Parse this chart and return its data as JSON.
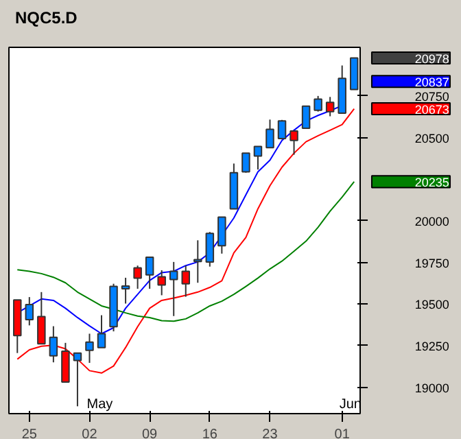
{
  "chart_data": {
    "type": "candlestick",
    "title": "NQC5.D",
    "categories": [
      null,
      "25",
      null,
      null,
      null,
      null,
      "02",
      null,
      null,
      null,
      null,
      "09",
      null,
      null,
      null,
      null,
      "16",
      null,
      null,
      null,
      null,
      "23",
      null,
      null,
      null,
      null,
      null,
      "01",
      null
    ],
    "ohlc": [
      [
        19525,
        19525,
        19206,
        19311
      ],
      [
        19406,
        19542,
        19372,
        19497
      ],
      [
        19425,
        19572,
        19261,
        19261
      ],
      [
        19189,
        19367,
        19150,
        19300
      ],
      [
        19217,
        19267,
        19031,
        19031
      ],
      [
        19161,
        19206,
        18886,
        19206
      ],
      [
        19222,
        19322,
        19147,
        19272
      ],
      [
        19239,
        19433,
        19239,
        19322
      ],
      [
        19364,
        19622,
        19336,
        19606
      ],
      [
        19592,
        19658,
        19503,
        19608
      ],
      [
        19717,
        19731,
        19592,
        19656
      ],
      [
        19675,
        19781,
        19592,
        19781
      ],
      [
        19664,
        19703,
        19553,
        19614
      ],
      [
        19647,
        19753,
        19428,
        19697
      ],
      [
        19697,
        19731,
        19544,
        19622
      ],
      [
        19756,
        19883,
        19628,
        19767
      ],
      [
        19753,
        19933,
        19725,
        19925
      ],
      [
        19850,
        20022,
        19803,
        20022
      ],
      [
        20072,
        20344,
        20072,
        20289
      ],
      [
        20294,
        20406,
        20289,
        20406
      ],
      [
        20389,
        20447,
        20308,
        20447
      ],
      [
        20439,
        20608,
        20439,
        20550
      ],
      [
        20494,
        20606,
        20489,
        20600
      ],
      [
        20539,
        20539,
        20397,
        20483
      ],
      [
        20556,
        20689,
        20556,
        20689
      ],
      [
        20664,
        20750,
        20656,
        20731
      ],
      [
        20711,
        20744,
        20628,
        20656
      ],
      [
        20647,
        20933,
        20647,
        20856
      ],
      [
        20789,
        20978,
        20789,
        20978
      ]
    ],
    "colors": [
      "#ff0000",
      "#0080ff",
      "#ff0000",
      "#0080ff",
      "#ff0000",
      "#0080ff",
      "#0080ff",
      "#0080ff",
      "#0080ff",
      "#0080ff",
      "#ff0000",
      "#0080ff",
      "#ff0000",
      "#0080ff",
      "#ff0000",
      "#0080ff",
      "#0080ff",
      "#0080ff",
      "#0080ff",
      "#0080ff",
      "#0080ff",
      "#0080ff",
      "#0080ff",
      "#ff0000",
      "#0080ff",
      "#0080ff",
      "#ff0000",
      "#0080ff",
      "#0080ff"
    ],
    "series": [
      {
        "type": "line",
        "color": "#0000ff",
        "values": [
          19447,
          19489,
          19531,
          19522,
          19475,
          19419,
          19369,
          19322,
          19358,
          19475,
          19558,
          19642,
          19689,
          19697,
          19731,
          19753,
          19808,
          null,
          20017,
          20156,
          20294,
          20364,
          20483,
          20544,
          20600,
          20633,
          20661,
          20692,
          null
        ]
      },
      {
        "type": "line",
        "color": "#ff0000",
        "values": [
          19169,
          19225,
          19247,
          19253,
          19231,
          19169,
          19100,
          19086,
          19128,
          19239,
          19364,
          19475,
          19522,
          19536,
          19553,
          19572,
          19600,
          19640,
          19808,
          19900,
          20072,
          20211,
          20322,
          20406,
          20475,
          20511,
          20544,
          20578,
          20673
        ]
      },
      {
        "type": "line",
        "color": "#008000",
        "values": [
          19706,
          19697,
          19683,
          19661,
          19628,
          19572,
          19531,
          19489,
          19469,
          19447,
          19428,
          19419,
          19400,
          19397,
          19411,
          19447,
          19489,
          19517,
          19558,
          19606,
          19656,
          19711,
          19758,
          19817,
          19878,
          19961,
          20058,
          20142,
          20235
        ]
      }
    ],
    "ylim": [
      18842,
      21042
    ],
    "yticks": [
      19000,
      19250,
      19500,
      19750,
      20000,
      20500,
      20750
    ],
    "annotations": [
      "20978",
      "20837",
      "20673",
      "20235",
      "May",
      "Jun"
    ],
    "grid": false
  }
}
